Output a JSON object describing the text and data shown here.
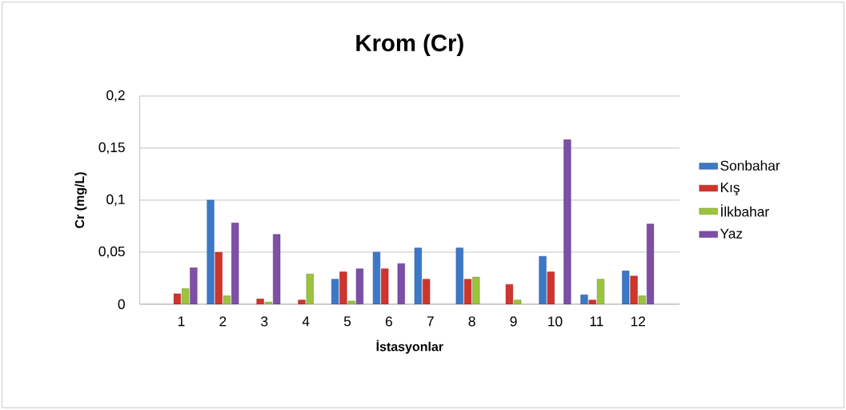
{
  "chart_data": {
    "type": "bar",
    "title": "Krom (Cr)",
    "xlabel": "İstasyonlar",
    "ylabel": "Cr (mg/L)",
    "categories": [
      "1",
      "2",
      "3",
      "4",
      "5",
      "6",
      "7",
      "8",
      "9",
      "10",
      "11",
      "12"
    ],
    "series": [
      {
        "name": "Sonbahar",
        "color": "#3c78c8",
        "values": [
          null,
          0.1,
          null,
          null,
          0.024,
          0.05,
          0.054,
          0.054,
          null,
          0.046,
          0.009,
          0.032
        ]
      },
      {
        "name": "Kış",
        "color": "#d0342c",
        "values": [
          0.01,
          0.05,
          0.005,
          0.004,
          0.031,
          0.034,
          0.024,
          0.024,
          0.019,
          0.031,
          0.004,
          0.027
        ]
      },
      {
        "name": "İlkbahar",
        "color": "#9bc43c",
        "values": [
          0.015,
          0.008,
          0.002,
          0.029,
          0.003,
          null,
          null,
          0.026,
          0.004,
          null,
          0.024,
          0.008
        ]
      },
      {
        "name": "Yaz",
        "color": "#7d4fa8",
        "values": [
          0.035,
          0.078,
          0.067,
          null,
          0.034,
          0.039,
          null,
          null,
          null,
          0.158,
          null,
          0.077
        ]
      }
    ],
    "ylim": [
      0,
      0.2
    ],
    "yticks": [
      0,
      {
        "value": 0.05,
        "label": "0,05"
      },
      {
        "value": 0.1,
        "label": "0,1"
      },
      {
        "value": 0.15,
        "label": "0,15"
      },
      {
        "value": 0.2,
        "label": "0,2"
      }
    ],
    "grid": "y",
    "legend": "right"
  }
}
